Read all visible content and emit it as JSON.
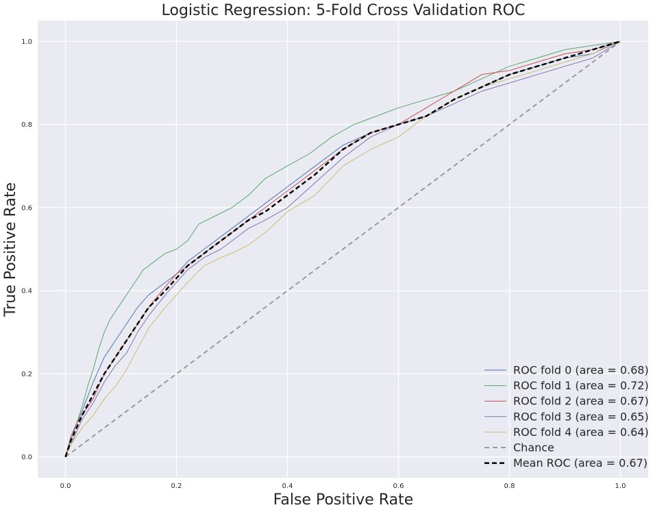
{
  "chart_data": {
    "type": "line",
    "title": "Logistic Regression: 5-Fold Cross Validation ROC",
    "xlabel": "False Positive Rate",
    "ylabel": "True Positive Rate",
    "xlim": [
      -0.05,
      1.05
    ],
    "ylim": [
      -0.05,
      1.05
    ],
    "xticks": [
      "0.0",
      "0.2",
      "0.4",
      "0.6",
      "0.8",
      "1.0"
    ],
    "yticks": [
      "0.0",
      "0.2",
      "0.4",
      "0.6",
      "0.8",
      "1.0"
    ],
    "grid": true,
    "legend_position": "lower-right",
    "series": [
      {
        "name": "ROC fold 0 (area = 0.68)",
        "color": "#4c72b0",
        "style": "solid",
        "x": [
          0,
          0.01,
          0.02,
          0.03,
          0.05,
          0.07,
          0.09,
          0.11,
          0.13,
          0.15,
          0.18,
          0.2,
          0.22,
          0.25,
          0.28,
          0.3,
          0.33,
          0.36,
          0.4,
          0.45,
          0.5,
          0.55,
          0.6,
          0.65,
          0.7,
          0.75,
          0.8,
          0.85,
          0.9,
          0.95,
          0.98,
          1.0
        ],
        "y": [
          0,
          0.05,
          0.08,
          0.11,
          0.18,
          0.24,
          0.28,
          0.32,
          0.36,
          0.39,
          0.42,
          0.44,
          0.47,
          0.5,
          0.53,
          0.55,
          0.58,
          0.61,
          0.65,
          0.7,
          0.75,
          0.78,
          0.8,
          0.82,
          0.86,
          0.89,
          0.92,
          0.94,
          0.96,
          0.97,
          0.99,
          1.0
        ]
      },
      {
        "name": "ROC fold 1 (area = 0.72)",
        "color": "#55a868",
        "style": "solid",
        "x": [
          0,
          0.01,
          0.02,
          0.03,
          0.04,
          0.05,
          0.06,
          0.07,
          0.08,
          0.1,
          0.12,
          0.14,
          0.16,
          0.18,
          0.2,
          0.22,
          0.24,
          0.27,
          0.3,
          0.33,
          0.36,
          0.4,
          0.44,
          0.48,
          0.52,
          0.56,
          0.6,
          0.65,
          0.7,
          0.75,
          0.8,
          0.85,
          0.9,
          0.95,
          1.0
        ],
        "y": [
          0,
          0.04,
          0.08,
          0.12,
          0.17,
          0.21,
          0.26,
          0.3,
          0.33,
          0.37,
          0.41,
          0.45,
          0.47,
          0.49,
          0.5,
          0.52,
          0.56,
          0.58,
          0.6,
          0.63,
          0.67,
          0.7,
          0.73,
          0.77,
          0.8,
          0.82,
          0.84,
          0.86,
          0.88,
          0.91,
          0.94,
          0.96,
          0.98,
          0.99,
          1.0
        ]
      },
      {
        "name": "ROC fold 2 (area = 0.67)",
        "color": "#c44e52",
        "style": "solid",
        "x": [
          0,
          0.01,
          0.02,
          0.03,
          0.05,
          0.07,
          0.09,
          0.11,
          0.13,
          0.15,
          0.18,
          0.2,
          0.22,
          0.25,
          0.28,
          0.3,
          0.33,
          0.36,
          0.4,
          0.45,
          0.5,
          0.55,
          0.6,
          0.65,
          0.7,
          0.75,
          0.8,
          0.85,
          0.9,
          0.95,
          1.0
        ],
        "y": [
          0,
          0.05,
          0.08,
          0.1,
          0.14,
          0.2,
          0.24,
          0.28,
          0.32,
          0.36,
          0.41,
          0.44,
          0.46,
          0.49,
          0.52,
          0.54,
          0.57,
          0.6,
          0.64,
          0.69,
          0.74,
          0.78,
          0.8,
          0.84,
          0.88,
          0.92,
          0.93,
          0.95,
          0.97,
          0.98,
          1.0
        ]
      },
      {
        "name": "ROC fold 3 (area = 0.65)",
        "color": "#8172b2",
        "style": "solid",
        "x": [
          0,
          0.01,
          0.02,
          0.03,
          0.05,
          0.07,
          0.09,
          0.11,
          0.13,
          0.15,
          0.18,
          0.2,
          0.22,
          0.25,
          0.28,
          0.3,
          0.33,
          0.36,
          0.4,
          0.45,
          0.5,
          0.55,
          0.6,
          0.65,
          0.7,
          0.75,
          0.8,
          0.85,
          0.9,
          0.95,
          1.0
        ],
        "y": [
          0,
          0.03,
          0.06,
          0.09,
          0.13,
          0.18,
          0.22,
          0.25,
          0.3,
          0.34,
          0.39,
          0.42,
          0.45,
          0.48,
          0.5,
          0.52,
          0.55,
          0.57,
          0.6,
          0.66,
          0.72,
          0.77,
          0.8,
          0.82,
          0.85,
          0.88,
          0.9,
          0.92,
          0.94,
          0.96,
          1.0
        ]
      },
      {
        "name": "ROC fold 4 (area = 0.64)",
        "color": "#ccb974",
        "style": "solid",
        "x": [
          0,
          0.01,
          0.02,
          0.03,
          0.05,
          0.07,
          0.09,
          0.11,
          0.13,
          0.15,
          0.18,
          0.2,
          0.22,
          0.25,
          0.28,
          0.3,
          0.33,
          0.36,
          0.4,
          0.45,
          0.5,
          0.55,
          0.6,
          0.65,
          0.7,
          0.75,
          0.8,
          0.85,
          0.9,
          0.95,
          1.0
        ],
        "y": [
          0,
          0.03,
          0.05,
          0.07,
          0.1,
          0.14,
          0.17,
          0.21,
          0.26,
          0.31,
          0.36,
          0.39,
          0.42,
          0.46,
          0.48,
          0.49,
          0.51,
          0.54,
          0.59,
          0.63,
          0.7,
          0.74,
          0.77,
          0.82,
          0.86,
          0.89,
          0.91,
          0.93,
          0.95,
          0.97,
          1.0
        ]
      },
      {
        "name": "Chance",
        "color": "#999999",
        "style": "dashed",
        "x": [
          0,
          1
        ],
        "y": [
          0,
          1
        ]
      },
      {
        "name": "Mean ROC (area = 0.67)",
        "color": "#000000",
        "style": "dashed-bold",
        "x": [
          0,
          0.01,
          0.02,
          0.03,
          0.05,
          0.07,
          0.09,
          0.11,
          0.13,
          0.15,
          0.18,
          0.2,
          0.22,
          0.25,
          0.28,
          0.3,
          0.33,
          0.36,
          0.4,
          0.45,
          0.5,
          0.55,
          0.6,
          0.65,
          0.7,
          0.75,
          0.8,
          0.85,
          0.9,
          0.95,
          1.0
        ],
        "y": [
          0,
          0.04,
          0.07,
          0.1,
          0.15,
          0.2,
          0.24,
          0.28,
          0.32,
          0.36,
          0.4,
          0.43,
          0.46,
          0.49,
          0.52,
          0.54,
          0.57,
          0.59,
          0.63,
          0.68,
          0.74,
          0.78,
          0.8,
          0.82,
          0.86,
          0.89,
          0.92,
          0.94,
          0.96,
          0.98,
          1.0
        ]
      }
    ]
  }
}
